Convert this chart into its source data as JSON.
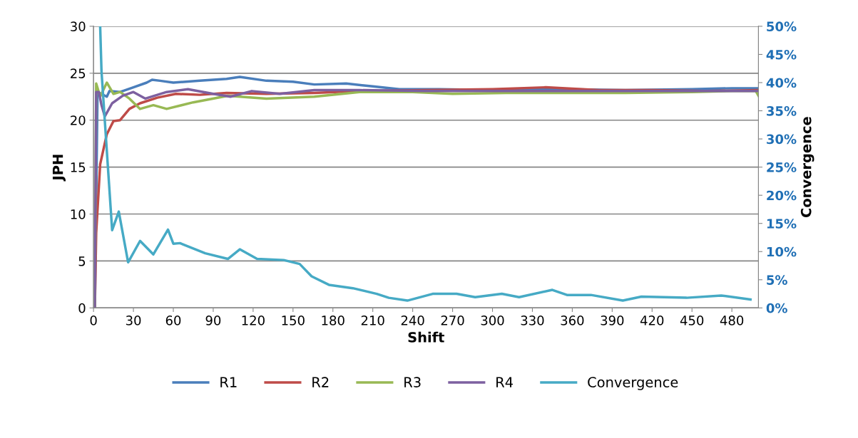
{
  "chart_data": {
    "type": "line",
    "xlabel": "Shift",
    "ylabel": "JPH",
    "y2label": "Convergence",
    "xlim": [
      0,
      500
    ],
    "xticks": [
      0,
      30,
      60,
      90,
      120,
      150,
      180,
      210,
      240,
      270,
      300,
      330,
      360,
      390,
      420,
      450,
      480
    ],
    "ylim": [
      0,
      30
    ],
    "yticks": [
      0,
      5,
      10,
      15,
      20,
      25,
      30
    ],
    "y2lim": [
      0,
      50
    ],
    "y2ticks": [
      {
        "value": 0,
        "label": "0%"
      },
      {
        "value": 5,
        "label": "5%"
      },
      {
        "value": 10,
        "label": "10%"
      },
      {
        "value": 15,
        "label": "15%"
      },
      {
        "value": 20,
        "label": "20%"
      },
      {
        "value": 25,
        "label": "25%"
      },
      {
        "value": 30,
        "label": "30%"
      },
      {
        "value": 35,
        "label": "35%"
      },
      {
        "value": 40,
        "label": "40%"
      },
      {
        "value": 45,
        "label": "45%"
      },
      {
        "value": 50,
        "label": "50%"
      }
    ],
    "grid": "y",
    "legend": "bottom",
    "marker": "none",
    "line_style": "solid",
    "series": [
      {
        "name": "R1",
        "color": "#4a7ebb",
        "x": [
          1,
          3,
          10,
          12,
          20,
          30,
          40,
          44,
          50,
          60,
          80,
          100,
          110,
          130,
          150,
          166,
          190,
          210,
          230,
          260,
          300,
          350,
          400,
          450,
          480,
          500
        ],
        "values": [
          0,
          23,
          22.5,
          23.1,
          23,
          23.5,
          24,
          24.3,
          24.2,
          24,
          24.2,
          24.4,
          24.6,
          24.2,
          24.1,
          23.8,
          23.9,
          23.6,
          23.3,
          23.3,
          23.2,
          23.3,
          23.2,
          23.3,
          23.4,
          23.4
        ]
      },
      {
        "name": "R2",
        "color": "#be4b48",
        "x": [
          1,
          2,
          5,
          10,
          15,
          20,
          27,
          35,
          48,
          62,
          80,
          100,
          130,
          166,
          200,
          250,
          300,
          340,
          380,
          420,
          460,
          500
        ],
        "values": [
          0,
          8,
          15.3,
          18.5,
          19.9,
          20,
          21.2,
          21.8,
          22.4,
          22.8,
          22.7,
          22.9,
          22.8,
          22.9,
          23.1,
          23.2,
          23.3,
          23.5,
          23.2,
          23.2,
          23.1,
          23.2
        ]
      },
      {
        "name": "R3",
        "color": "#98b954",
        "x": [
          1,
          2,
          5,
          10,
          15,
          20,
          27,
          35,
          45,
          55,
          75,
          101,
          130,
          166,
          200,
          240,
          270,
          310,
          350,
          400,
          450,
          480,
          498,
          500
        ],
        "values": [
          0,
          23.9,
          22.5,
          24,
          22.8,
          23,
          22.3,
          21.2,
          21.6,
          21.2,
          21.9,
          22.6,
          22.3,
          22.5,
          23,
          23,
          22.8,
          22.9,
          22.9,
          22.9,
          23,
          23.1,
          23.1,
          22.6
        ]
      },
      {
        "name": "R4",
        "color": "#7d60a0",
        "x": [
          1,
          2,
          4,
          6,
          8.5,
          14,
          22,
          30,
          39,
          55,
          71,
          90,
          103,
          119,
          140,
          166,
          200,
          250,
          300,
          350,
          400,
          450,
          500
        ],
        "values": [
          0,
          23,
          23,
          21.6,
          20.4,
          21.8,
          22.6,
          23,
          22.3,
          23,
          23.3,
          22.8,
          22.5,
          23.1,
          22.8,
          23.2,
          23.2,
          23.1,
          23.1,
          23.1,
          23.1,
          23.1,
          23.1
        ]
      },
      {
        "name": "Convergence",
        "color": "#46aac5",
        "axis": "y2",
        "x": [
          5,
          6,
          14,
          19,
          26,
          35,
          45,
          56,
          60,
          65,
          84,
          101,
          110,
          123,
          143,
          155,
          164,
          177,
          195,
          213,
          222,
          236,
          255,
          273,
          287,
          307,
          320,
          345,
          356,
          374,
          398,
          412,
          446,
          472,
          494
        ],
        "values": [
          50,
          42,
          13.8,
          17.1,
          8.1,
          11.9,
          9.5,
          13.9,
          11.4,
          11.5,
          9.7,
          8.7,
          10.4,
          8.7,
          8.5,
          7.8,
          5.6,
          4.1,
          3.5,
          2.5,
          1.8,
          1.3,
          2.5,
          2.5,
          1.9,
          2.5,
          1.9,
          3.2,
          2.3,
          2.3,
          1.3,
          2,
          1.8,
          2.2,
          1.5
        ]
      }
    ]
  }
}
